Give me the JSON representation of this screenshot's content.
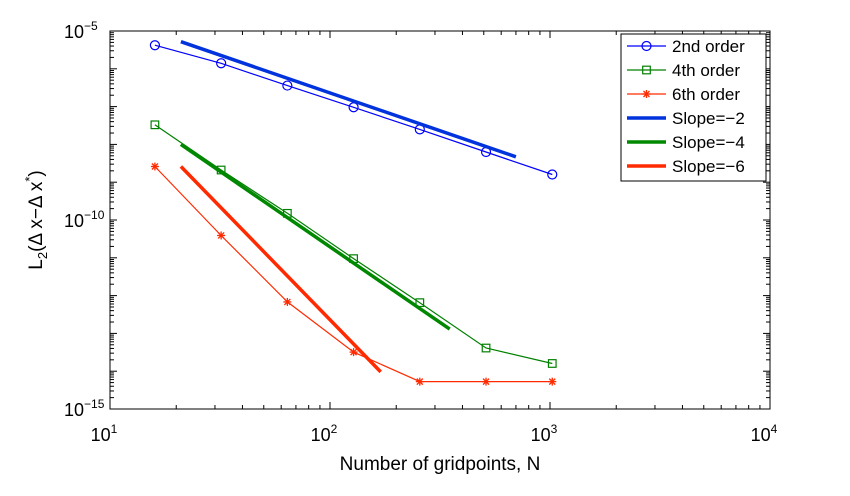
{
  "chart_data": {
    "type": "line",
    "title": "",
    "xlabel": "Number of gridpoints, N",
    "ylabel_main": "L",
    "ylabel_sub": "2",
    "ylabel_rest": "(Δ x−Δ x",
    "ylabel_sup": "*",
    "ylabel_close": ")",
    "xscale": "log",
    "yscale": "log",
    "xlim": [
      10,
      10000
    ],
    "ylim": [
      1e-15,
      1e-05
    ],
    "grid": false,
    "legend_position": "top-right",
    "x_ticks": [
      {
        "base": "10",
        "exp": "1",
        "value": 10
      },
      {
        "base": "10",
        "exp": "2",
        "value": 100
      },
      {
        "base": "10",
        "exp": "3",
        "value": 1000
      },
      {
        "base": "10",
        "exp": "4",
        "value": 10000
      }
    ],
    "y_ticks": [
      {
        "base": "10",
        "exp": "−15",
        "value": 1e-15
      },
      {
        "base": "10",
        "exp": "−10",
        "value": 1e-10
      },
      {
        "base": "10",
        "exp": "−5",
        "value": 1e-05
      }
    ],
    "series": [
      {
        "name": "2nd order",
        "color": "#0000ff",
        "marker": "circle",
        "style": "thin",
        "x": [
          16,
          32,
          64,
          128,
          256,
          512,
          1024
        ],
        "y": [
          4.2e-06,
          1.4e-06,
          3.6e-07,
          9.6e-08,
          2.5e-08,
          6.3e-09,
          1.6e-09
        ]
      },
      {
        "name": "4th order",
        "color": "#008000",
        "marker": "square",
        "style": "thin",
        "x": [
          16,
          32,
          64,
          128,
          256,
          512,
          1024
        ],
        "y": [
          3.3e-08,
          2.1e-09,
          1.5e-10,
          9.5e-12,
          6.5e-13,
          4.1e-14,
          1.6e-14
        ]
      },
      {
        "name": "6th order",
        "color": "#ff2a00",
        "marker": "star",
        "style": "thin",
        "x": [
          16,
          32,
          64,
          128,
          256,
          512,
          1024
        ],
        "y": [
          2.6e-09,
          3.9e-11,
          6.8e-13,
          3.2e-14,
          5.3e-15,
          5.3e-15,
          5.3e-15
        ]
      },
      {
        "name": "Slope=−2",
        "color": "#0033dd",
        "marker": "none",
        "style": "thick",
        "x": [
          21,
          700
        ],
        "y": [
          5.2e-06,
          4.7e-09
        ]
      },
      {
        "name": "Slope=−4",
        "color": "#008800",
        "marker": "none",
        "style": "thick",
        "x": [
          21,
          350
        ],
        "y": [
          1e-08,
          1.3e-13
        ]
      },
      {
        "name": "Slope=−6",
        "color": "#ff2a00",
        "marker": "none",
        "style": "thick",
        "x": [
          21,
          170
        ],
        "y": [
          2.6e-09,
          9.6e-15
        ]
      }
    ]
  }
}
